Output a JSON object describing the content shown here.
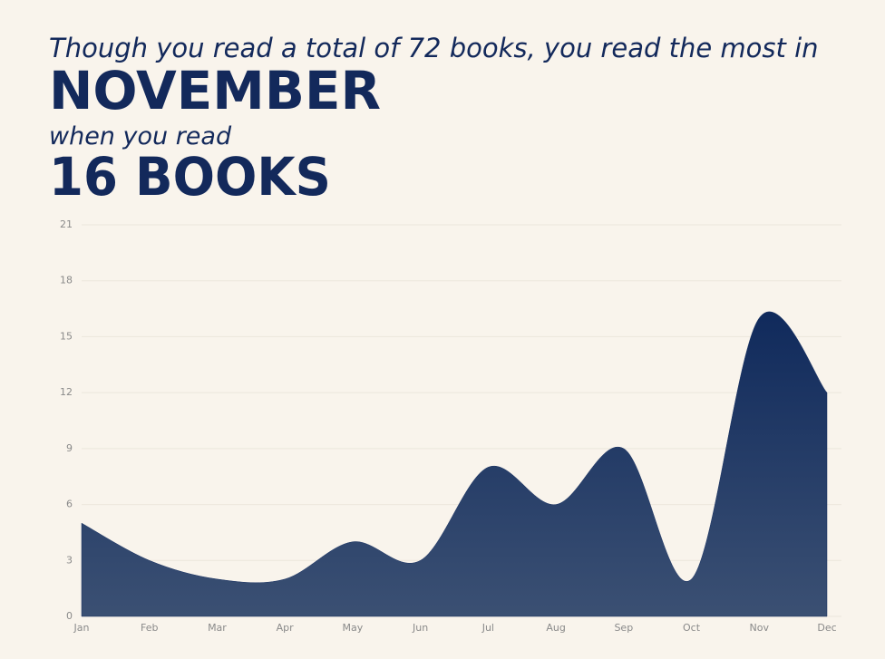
{
  "chart_data": {
    "type": "area",
    "title_lines": [
      "Though you read a total of 72 books, you read the most in",
      "NOVEMBER",
      "when you read",
      "16 BOOKS"
    ],
    "categories": [
      "Jan",
      "Feb",
      "Mar",
      "Apr",
      "May",
      "Jun",
      "Jul",
      "Aug",
      "Sep",
      "Oct",
      "Nov",
      "Dec"
    ],
    "values": [
      5,
      3,
      2,
      2,
      4,
      3,
      8,
      6,
      9,
      2,
      16,
      12
    ],
    "color": "#1a3263",
    "ylim": [
      0,
      21
    ],
    "yticks": [
      0,
      3,
      6,
      9,
      12,
      15,
      18,
      21
    ],
    "grid": true
  }
}
